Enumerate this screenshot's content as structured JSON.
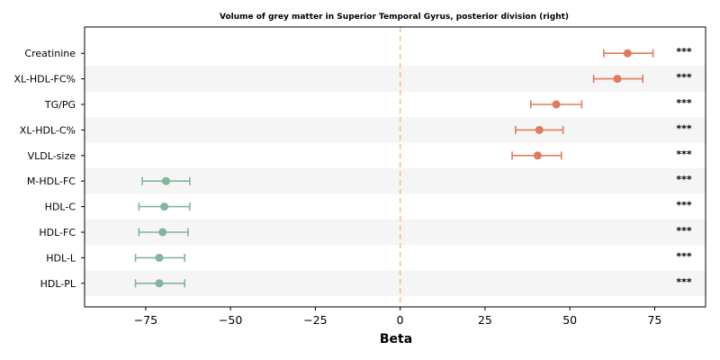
{
  "chart_data": {
    "type": "scatter",
    "subtype": "forest-plot",
    "title": "Volume of grey matter in Superior Temporal Gyrus, posterior division (right)",
    "xlabel": "Beta",
    "ylabel": "",
    "xlim": [
      -93,
      90
    ],
    "xticks": [
      -75,
      -50,
      -25,
      0,
      25,
      50,
      75
    ],
    "xtick_labels": [
      "−75",
      "−50",
      "−25",
      "0",
      "25",
      "50",
      "75"
    ],
    "reference_line": 0,
    "grid": false,
    "row_banding": true,
    "colors": {
      "positive": "#e07b5c",
      "negative": "#82b59c",
      "reference": "#f5c27a",
      "band": "#f5f5f5"
    },
    "rows": [
      {
        "label": "Creatinine",
        "beta": 67,
        "ci_low": 60,
        "ci_high": 74.5,
        "sig": "***"
      },
      {
        "label": "XL-HDL-FC%",
        "beta": 64,
        "ci_low": 57,
        "ci_high": 71.5,
        "sig": "***"
      },
      {
        "label": "TG/PG",
        "beta": 46,
        "ci_low": 38.5,
        "ci_high": 53.5,
        "sig": "***"
      },
      {
        "label": "XL-HDL-C%",
        "beta": 41,
        "ci_low": 34,
        "ci_high": 48,
        "sig": "***"
      },
      {
        "label": "VLDL-size",
        "beta": 40.5,
        "ci_low": 33,
        "ci_high": 47.5,
        "sig": "***"
      },
      {
        "label": "M-HDL-FC",
        "beta": -69,
        "ci_low": -76,
        "ci_high": -62,
        "sig": "***"
      },
      {
        "label": "HDL-C",
        "beta": -69.5,
        "ci_low": -77,
        "ci_high": -62,
        "sig": "***"
      },
      {
        "label": "HDL-FC",
        "beta": -70,
        "ci_low": -77,
        "ci_high": -62.5,
        "sig": "***"
      },
      {
        "label": "HDL-L",
        "beta": -71,
        "ci_low": -78,
        "ci_high": -63.5,
        "sig": "***"
      },
      {
        "label": "HDL-PL",
        "beta": -71,
        "ci_low": -78,
        "ci_high": -63.5,
        "sig": "***"
      }
    ]
  }
}
